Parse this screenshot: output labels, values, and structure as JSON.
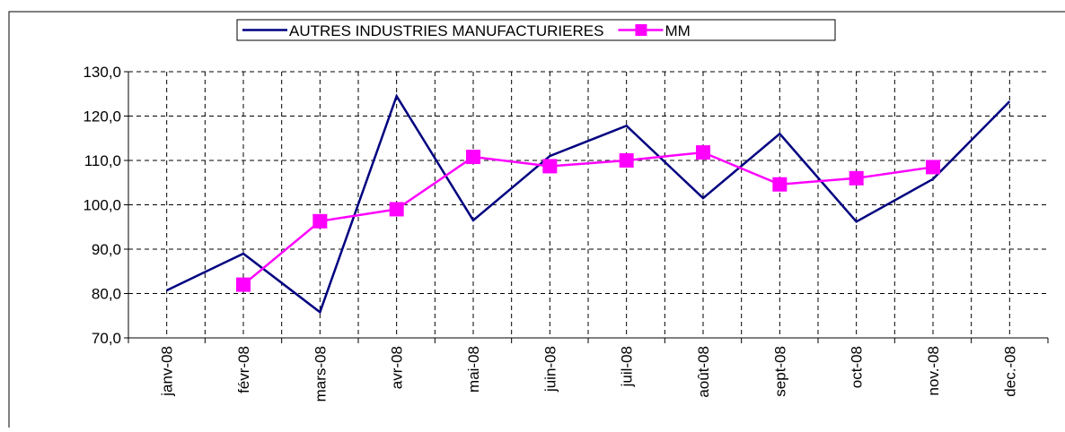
{
  "chart_data": {
    "type": "line",
    "categories": [
      "janv-08",
      "févr-08",
      "mars-08",
      "avr-08",
      "mai-08",
      "juin-08",
      "juil-08",
      "août-08",
      "sept-08",
      "oct-08",
      "nov.-08",
      "dec.-08"
    ],
    "series": [
      {
        "name": "AUTRES INDUSTRIES MANUFACTURIERES",
        "color": "#000080",
        "values": [
          80.7,
          89.0,
          75.8,
          124.5,
          96.5,
          111.0,
          117.8,
          101.5,
          116.0,
          96.2,
          105.8,
          123.3
        ]
      },
      {
        "name": "MM",
        "color": "#ff00ff",
        "marker": "square",
        "values": [
          null,
          82.0,
          96.3,
          99.0,
          110.8,
          108.7,
          110.0,
          111.8,
          104.6,
          106.0,
          108.5,
          null
        ]
      }
    ],
    "ylim": [
      70,
      130
    ],
    "yticks": [
      {
        "value": 70,
        "label": "70,0"
      },
      {
        "value": 80,
        "label": "80,0"
      },
      {
        "value": 90,
        "label": "90,0"
      },
      {
        "value": 100,
        "label": "100,0"
      },
      {
        "value": 110,
        "label": "110,0"
      },
      {
        "value": 120,
        "label": "120,0"
      },
      {
        "value": 130,
        "label": "130,0"
      }
    ],
    "grid": true,
    "legend": "top"
  }
}
